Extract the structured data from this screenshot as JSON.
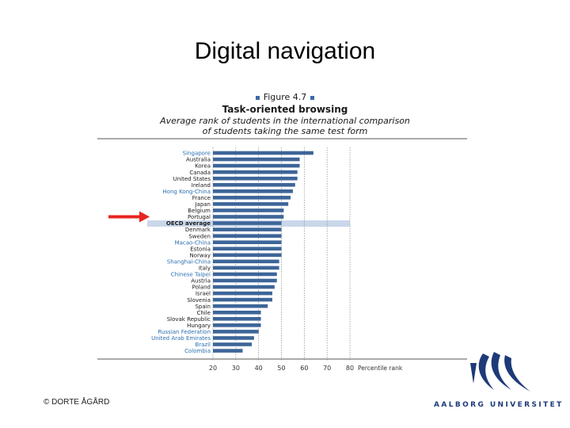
{
  "slide": {
    "title": "Digital navigation"
  },
  "figure": {
    "number": "Figure 4.7",
    "title": "Task-oriented browsing",
    "subtitle_line1": "Average rank of students in the international comparison",
    "subtitle_line2": "of students taking the same test form"
  },
  "chart_data": {
    "type": "bar",
    "orientation": "horizontal",
    "xlabel": "Percentile rank",
    "xticks": [
      20,
      30,
      40,
      50,
      60,
      70,
      80
    ],
    "xlim": [
      20,
      80
    ],
    "highlight": "OECD average",
    "categories": [
      "Singapore",
      "Australia",
      "Korea",
      "Canada",
      "United States",
      "Ireland",
      "Hong Kong-China",
      "France",
      "Japan",
      "Belgium",
      "Portugal",
      "OECD average",
      "Denmark",
      "Sweden",
      "Macao-China",
      "Estonia",
      "Norway",
      "Shanghai-China",
      "Italy",
      "Chinese Taipei",
      "Austria",
      "Poland",
      "Israel",
      "Slovenia",
      "Spain",
      "Chile",
      "Slovak Republic",
      "Hungary",
      "Russian Federation",
      "United Arab Emirates",
      "Brazil",
      "Colombia"
    ],
    "values": [
      64,
      58,
      58,
      57,
      57,
      56,
      55,
      54,
      53,
      51,
      51,
      50,
      50,
      50,
      50,
      50,
      50,
      49,
      49,
      48,
      48,
      47,
      46,
      46,
      44,
      41,
      41,
      41,
      40,
      38,
      37,
      33
    ],
    "label_colors": {
      "non_oecd": "#2a6fb0",
      "oecd": "#1a1a1a",
      "bar": "#3d6598"
    },
    "non_oecd": [
      "Singapore",
      "Hong Kong-China",
      "Macao-China",
      "Shanghai-China",
      "Chinese Taipei",
      "Russian Federation",
      "United Arab Emirates",
      "Brazil",
      "Colombia"
    ]
  },
  "footer": {
    "copyright": "© DORTE ÅGÅRD",
    "university": "AALBORG UNIVERSITET"
  },
  "annotation": {
    "arrow_color": "#e8251f",
    "icon": "red-arrow-icon"
  }
}
